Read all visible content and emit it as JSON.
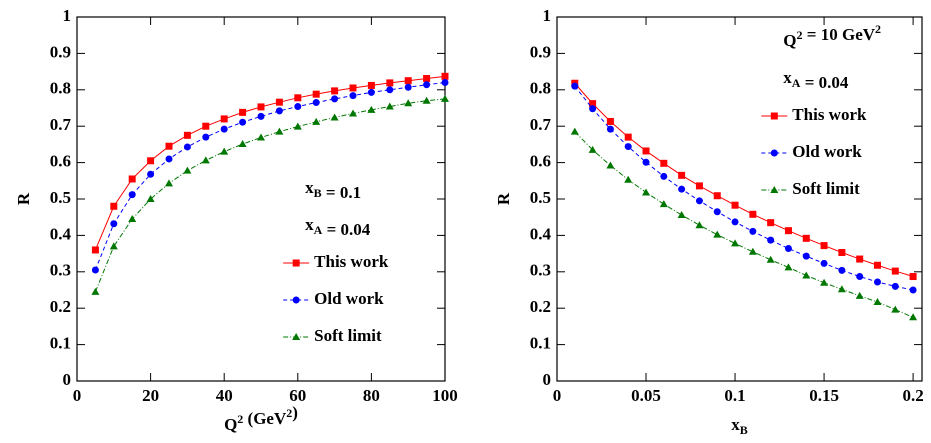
{
  "chart_data": [
    {
      "type": "line",
      "legend": "lower right",
      "xlabel": [
        {
          "text": "Q"
        },
        {
          "sup": "2"
        },
        {
          "text": " (GeV"
        },
        {
          "sup": "2"
        },
        {
          "text": ")"
        }
      ],
      "ylabel": [
        {
          "text": "R"
        }
      ],
      "annotations": [
        [
          {
            "text": "x"
          },
          {
            "sub": "B"
          },
          {
            "text": " = 0.1"
          }
        ],
        [
          {
            "text": "x"
          },
          {
            "sub": "A"
          },
          {
            "text": " = 0.04"
          }
        ]
      ],
      "x": [
        5,
        10,
        15,
        20,
        25,
        30,
        35,
        40,
        45,
        50,
        55,
        60,
        65,
        70,
        75,
        80,
        85,
        90,
        95,
        100
      ],
      "xlim": [
        0,
        100
      ],
      "xticks": [
        0,
        20,
        40,
        60,
        80,
        100
      ],
      "ylim": [
        0,
        1
      ],
      "yticks": [
        0,
        0.1,
        0.2,
        0.3,
        0.4,
        0.5,
        0.6,
        0.7,
        0.8,
        0.9,
        1
      ],
      "series": [
        {
          "name": "This work",
          "color": "#ff0000",
          "marker": "square",
          "dash": "solid",
          "values": [
            0.36,
            0.48,
            0.555,
            0.605,
            0.645,
            0.675,
            0.7,
            0.72,
            0.738,
            0.753,
            0.766,
            0.778,
            0.788,
            0.797,
            0.805,
            0.812,
            0.819,
            0.825,
            0.831,
            0.837
          ]
        },
        {
          "name": "Old work",
          "color": "#0000ff",
          "marker": "circle",
          "dash": "dashed",
          "values": [
            0.305,
            0.432,
            0.512,
            0.568,
            0.61,
            0.643,
            0.67,
            0.692,
            0.711,
            0.727,
            0.742,
            0.754,
            0.765,
            0.775,
            0.784,
            0.793,
            0.8,
            0.807,
            0.814,
            0.82
          ]
        },
        {
          "name": "Soft limit",
          "color": "#007700",
          "marker": "triangle",
          "dash": "dashdot",
          "values": [
            0.245,
            0.37,
            0.445,
            0.5,
            0.543,
            0.578,
            0.606,
            0.63,
            0.651,
            0.669,
            0.685,
            0.699,
            0.712,
            0.724,
            0.735,
            0.745,
            0.754,
            0.763,
            0.77,
            0.775
          ]
        }
      ]
    },
    {
      "type": "line",
      "legend": "upper right",
      "xlabel": [
        {
          "text": "x"
        },
        {
          "sub": "B"
        }
      ],
      "ylabel": [
        {
          "text": "R"
        }
      ],
      "annotations": [
        [
          {
            "text": "Q"
          },
          {
            "sup": "2"
          },
          {
            "text": " = 10 GeV"
          },
          {
            "sup": "2"
          }
        ],
        [
          {
            "text": "x"
          },
          {
            "sub": "A"
          },
          {
            "text": " = 0.04"
          }
        ]
      ],
      "x": [
        0.01,
        0.02,
        0.03,
        0.04,
        0.05,
        0.06,
        0.07,
        0.08,
        0.09,
        0.1,
        0.11,
        0.12,
        0.13,
        0.14,
        0.15,
        0.16,
        0.17,
        0.18,
        0.19,
        0.2
      ],
      "xlim": [
        0,
        0.205
      ],
      "xticks": [
        0,
        0.05,
        0.1,
        0.15,
        0.2
      ],
      "ylim": [
        0,
        1
      ],
      "yticks": [
        0,
        0.1,
        0.2,
        0.3,
        0.4,
        0.5,
        0.6,
        0.7,
        0.8,
        0.9,
        1
      ],
      "series": [
        {
          "name": "This work",
          "color": "#ff0000",
          "marker": "square",
          "dash": "solid",
          "values": [
            0.818,
            0.762,
            0.713,
            0.67,
            0.632,
            0.598,
            0.565,
            0.536,
            0.509,
            0.483,
            0.458,
            0.435,
            0.413,
            0.392,
            0.372,
            0.353,
            0.335,
            0.318,
            0.302,
            0.287
          ]
        },
        {
          "name": "Old work",
          "color": "#0000ff",
          "marker": "circle",
          "dash": "dashed",
          "values": [
            0.81,
            0.748,
            0.692,
            0.644,
            0.601,
            0.562,
            0.527,
            0.495,
            0.465,
            0.437,
            0.411,
            0.387,
            0.364,
            0.343,
            0.323,
            0.304,
            0.287,
            0.272,
            0.26,
            0.25
          ]
        },
        {
          "name": "Soft limit",
          "color": "#007700",
          "marker": "triangle",
          "dash": "dashdot",
          "values": [
            0.685,
            0.635,
            0.592,
            0.553,
            0.518,
            0.486,
            0.456,
            0.428,
            0.402,
            0.378,
            0.355,
            0.333,
            0.312,
            0.29,
            0.27,
            0.252,
            0.234,
            0.217,
            0.196,
            0.175
          ]
        }
      ]
    }
  ]
}
